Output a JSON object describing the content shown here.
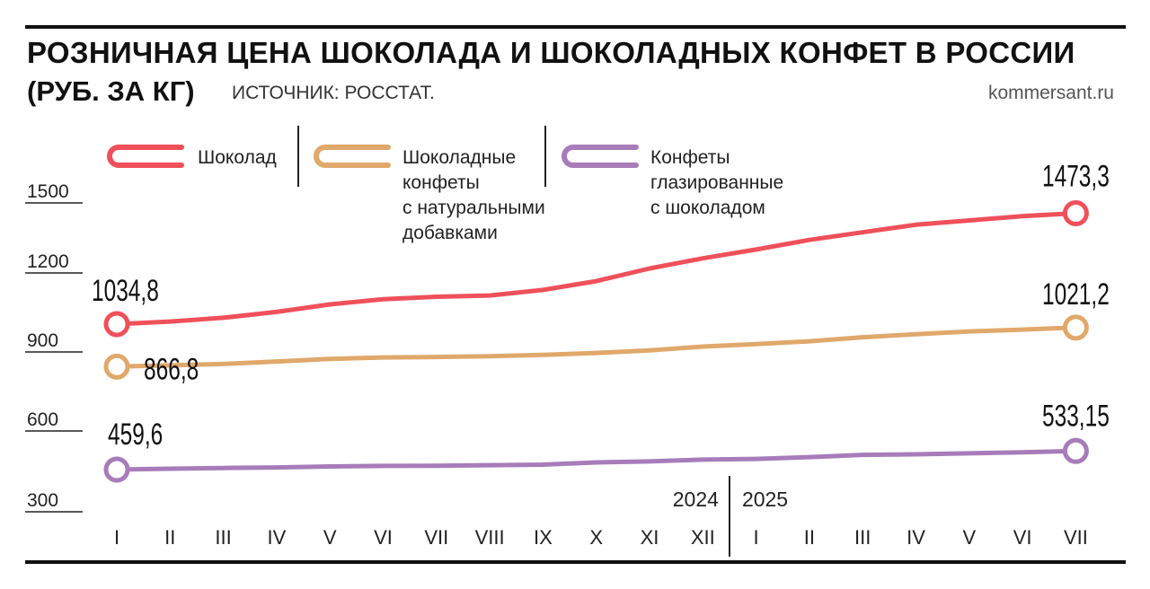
{
  "header": {
    "title": "РОЗНИЧНАЯ ЦЕНА ШОКОЛАДА И ШОКОЛАДНЫХ КОНФЕТ В РОССИИ",
    "unit": "(РУБ. ЗА КГ)",
    "source": "ИСТОЧНИК: РОССТАТ.",
    "brand": "kommersant.ru"
  },
  "chart_data": {
    "type": "line",
    "categories": [
      "I",
      "II",
      "III",
      "IV",
      "V",
      "VI",
      "VII",
      "VIII",
      "IX",
      "X",
      "XI",
      "XII",
      "I",
      "II",
      "III",
      "IV",
      "V",
      "VI",
      "VII"
    ],
    "year_labels": [
      "2024",
      "2025"
    ],
    "y_ticks": [
      300,
      600,
      900,
      1200,
      1500
    ],
    "ylim": [
      300,
      1600
    ],
    "series": [
      {
        "name": "Шоколад",
        "color": "#f0505a",
        "values": [
          1034.8,
          1045,
          1060,
          1083,
          1113,
          1133,
          1143,
          1148,
          1170,
          1205,
          1255,
          1295,
          1330,
          1368,
          1398,
          1428,
          1445,
          1462,
          1473.3
        ],
        "start_label": "1034,8",
        "end_label": "1473,3"
      },
      {
        "name": "Шоколадные конфеты с натуральными добавками",
        "color": "#e0a86a",
        "values": [
          866.8,
          872,
          877,
          887,
          897,
          903,
          905,
          908,
          913,
          921,
          931,
          946,
          956,
          967,
          983,
          995,
          1006,
          1013,
          1021.2
        ],
        "start_label": "866,8",
        "end_label": "1021,2"
      },
      {
        "name": "Конфеты глазированные с шоколадом",
        "color": "#a77cb9",
        "values": [
          459.6,
          463,
          466,
          468,
          472,
          474,
          475,
          477,
          479,
          488,
          492,
          499,
          502,
          509,
          518,
          520,
          524,
          528,
          533.15
        ],
        "start_label": "459,6",
        "end_label": "533,15"
      }
    ],
    "legend": [
      {
        "lines": [
          "Шоколад"
        ]
      },
      {
        "lines": [
          "Шоколадные",
          "конфеты",
          "с натуральными",
          "добавками"
        ]
      },
      {
        "lines": [
          "Конфеты",
          "глазированные",
          "с шоколадом"
        ]
      }
    ]
  }
}
